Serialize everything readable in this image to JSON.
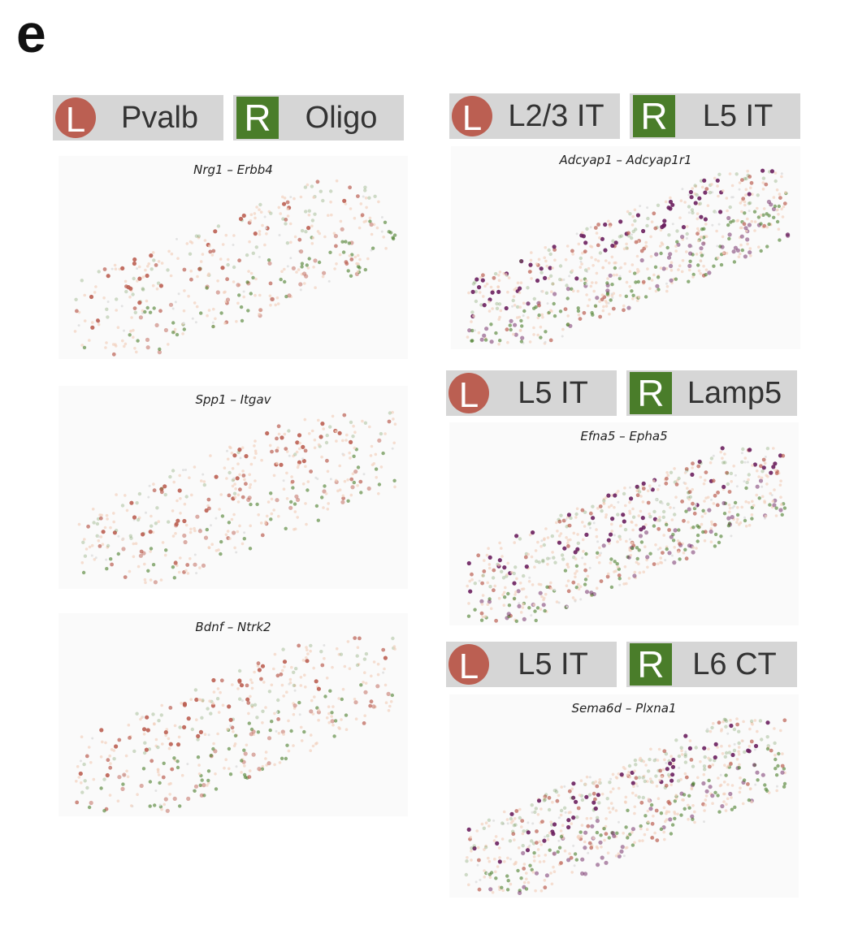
{
  "panel_label": "e",
  "colors": {
    "ligand": "#bb5f52",
    "receptor": "#4a7d2a",
    "coexpressed": "#6a1f5e",
    "background_cells": "#f2d2bf"
  },
  "groups": [
    {
      "ligand_mark": "L",
      "ligand_cell": "Pvalb",
      "receptor_mark": "R",
      "receptor_cell": "Oligo",
      "plots": [
        {
          "title": "Nrg1 – Erbb4"
        },
        {
          "title": "Spp1 – Itgav"
        },
        {
          "title": "Bdnf – Ntrk2"
        }
      ]
    },
    {
      "ligand_mark": "L",
      "ligand_cell": "L2/3 IT",
      "receptor_mark": "R",
      "receptor_cell": "L5 IT",
      "plots": [
        {
          "title": "Adcyap1 – Adcyap1r1"
        }
      ]
    },
    {
      "ligand_mark": "L",
      "ligand_cell": "L5 IT",
      "receptor_mark": "R",
      "receptor_cell": "Lamp5",
      "plots": [
        {
          "title": "Efna5 – Epha5"
        }
      ]
    },
    {
      "ligand_mark": "L",
      "ligand_cell": "L5 IT",
      "receptor_mark": "R",
      "receptor_cell": "L6 CT",
      "plots": [
        {
          "title": "Sema6d – Plxna1"
        }
      ]
    }
  ],
  "chart_data": {
    "type": "scatter",
    "description_of_marks": "spatial cell positions colored by ligand / receptor expression"
  }
}
